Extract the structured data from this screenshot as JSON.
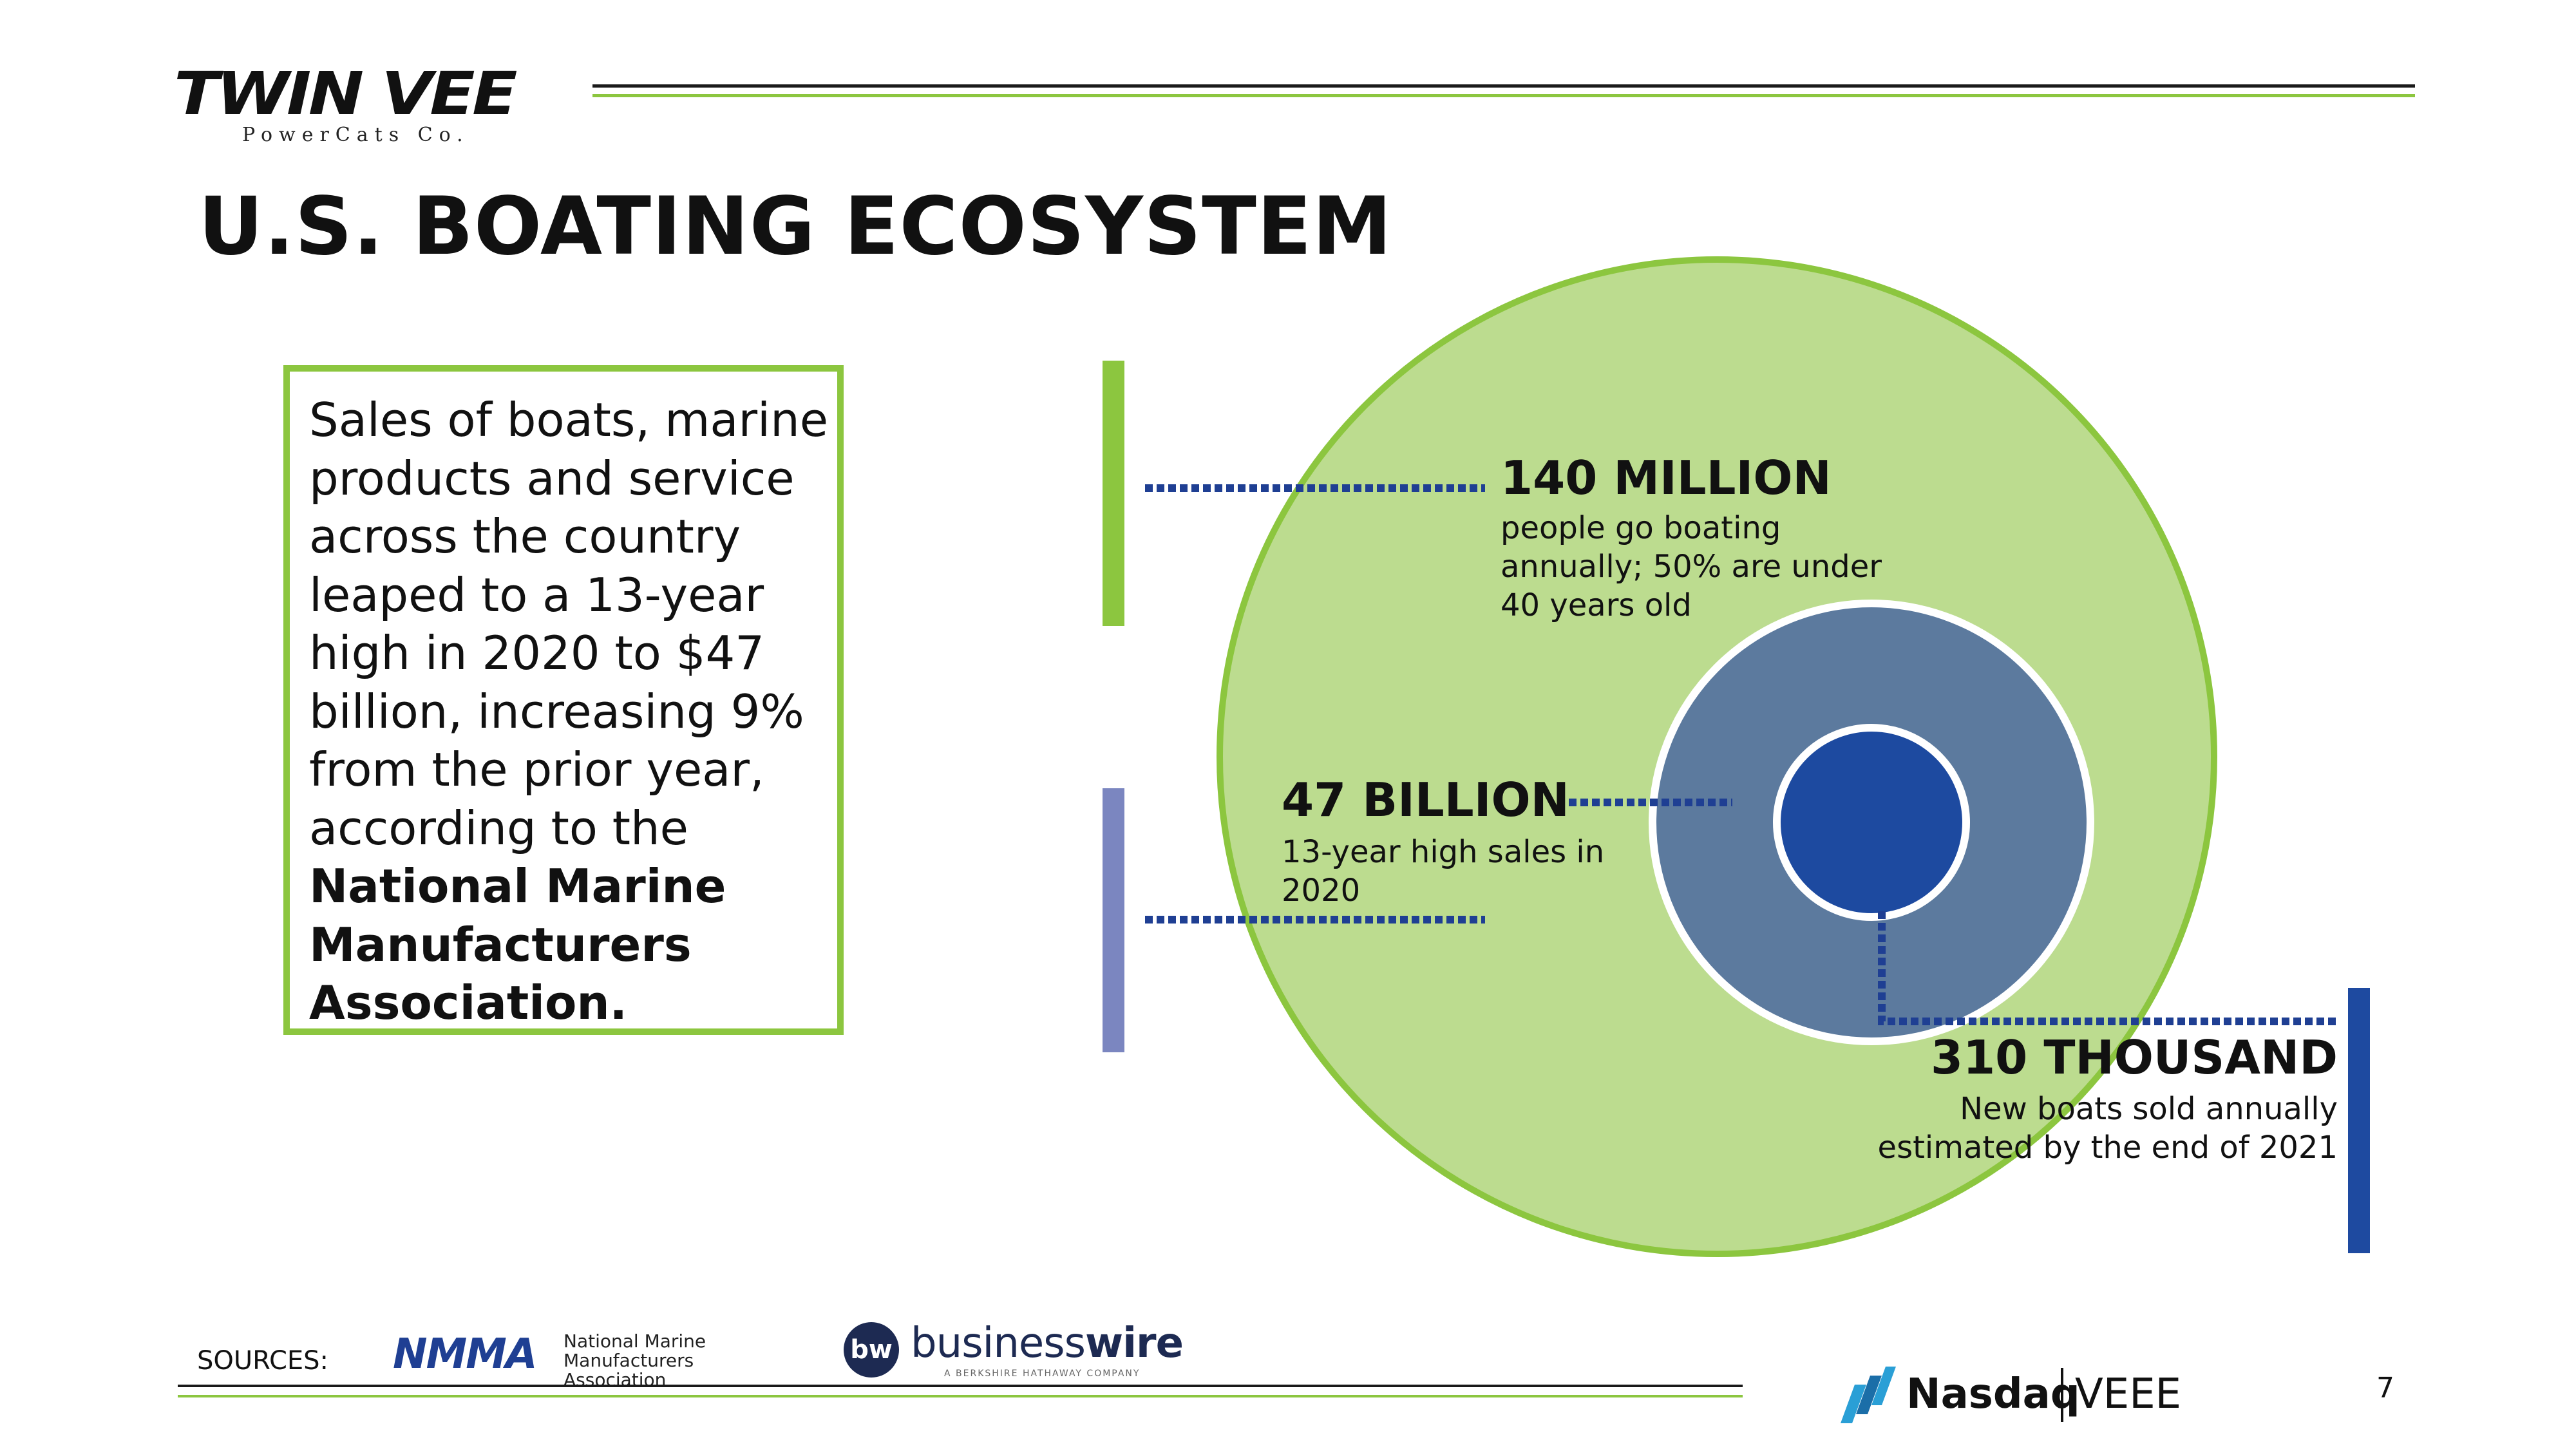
{
  "header": {
    "logo_main": "TWIN VEE",
    "logo_sub": "PowerCats Co.",
    "title": "U.S. BOATING ECOSYSTEM"
  },
  "intro": {
    "text": "Sales of boats, marine products and service across the country leaped to a 13-year high in 2020 to $47 billion, increasing 9% from the prior year, according to the ",
    "source_bold": "National Marine Manufacturers Association."
  },
  "stats": [
    {
      "headline": "140 MILLION",
      "body": "people go boating annually; 50% are under 40 years old"
    },
    {
      "headline": "47 BILLION",
      "body": "13-year high sales in 2020"
    },
    {
      "headline": "310 THOUSAND",
      "body": "New boats sold annually estimated by the end of 2021"
    }
  ],
  "colors": {
    "outer_circle_fill": "#bcdc8f",
    "outer_circle_stroke": "#8cc63f",
    "middle_circle_fill": "#5c7a9e",
    "inner_circle_fill": "#1d4aa0",
    "connector": "#1f3f93"
  },
  "footer": {
    "sources_label": "SOURCES:",
    "nmma_mark": "NMMA",
    "nmma_text": "National Marine Manufacturers Association",
    "bw_icon": "bw",
    "bw_word_light": "business",
    "bw_word_bold": "wire",
    "bw_tagline": "A BERKSHIRE HATHAWAY COMPANY",
    "nasdaq_name": "Nasdaq",
    "ticker": "VEEE",
    "page_number": "7"
  }
}
